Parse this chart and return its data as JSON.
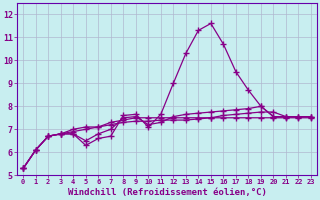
{
  "title": "",
  "xlabel": "Windchill (Refroidissement éolien,°C)",
  "ylabel": "",
  "bg_color": "#c8eef0",
  "grid_color": "#b0b8d0",
  "line_color": "#880088",
  "spine_color": "#6600aa",
  "tick_color": "#880088",
  "xlim": [
    -0.5,
    23.5
  ],
  "ylim": [
    5,
    12.5
  ],
  "yticks": [
    5,
    6,
    7,
    8,
    9,
    10,
    11,
    12
  ],
  "xticks": [
    0,
    1,
    2,
    3,
    4,
    5,
    6,
    7,
    8,
    9,
    10,
    11,
    12,
    13,
    14,
    15,
    16,
    17,
    18,
    19,
    20,
    21,
    22,
    23
  ],
  "series": [
    [
      5.3,
      6.1,
      6.7,
      6.8,
      6.8,
      6.3,
      6.6,
      6.7,
      7.6,
      7.65,
      7.1,
      7.65,
      9.0,
      10.3,
      11.3,
      11.6,
      10.7,
      9.5,
      8.7,
      8.0,
      7.55,
      7.55,
      7.55,
      7.55
    ],
    [
      5.3,
      6.1,
      6.7,
      6.8,
      6.8,
      6.5,
      6.8,
      7.0,
      7.5,
      7.55,
      7.2,
      7.3,
      7.55,
      7.65,
      7.7,
      7.75,
      7.8,
      7.85,
      7.9,
      8.0,
      7.55,
      7.55,
      7.55,
      7.55
    ],
    [
      5.3,
      6.1,
      6.7,
      6.8,
      7.0,
      7.1,
      7.1,
      7.3,
      7.4,
      7.5,
      7.5,
      7.5,
      7.5,
      7.5,
      7.5,
      7.5,
      7.6,
      7.65,
      7.7,
      7.75,
      7.75,
      7.55,
      7.55,
      7.55
    ],
    [
      5.3,
      6.1,
      6.7,
      6.8,
      6.9,
      7.0,
      7.1,
      7.2,
      7.3,
      7.35,
      7.35,
      7.4,
      7.4,
      7.4,
      7.45,
      7.5,
      7.5,
      7.5,
      7.5,
      7.5,
      7.5,
      7.5,
      7.5,
      7.5
    ]
  ]
}
